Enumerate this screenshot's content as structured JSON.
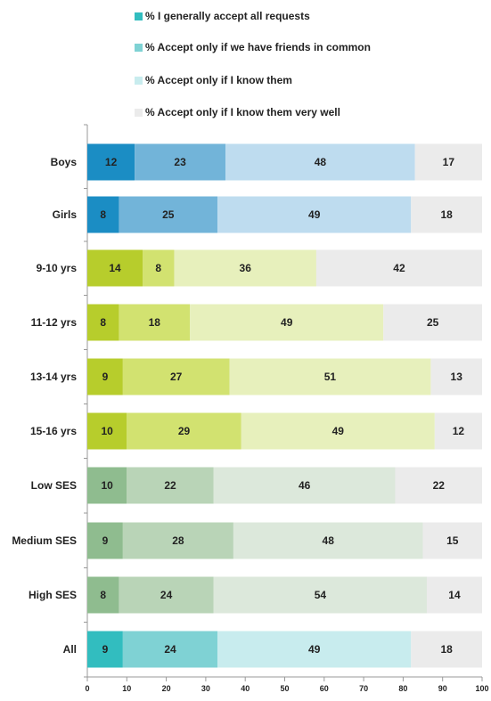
{
  "chart_data": {
    "type": "bar",
    "orientation": "horizontal",
    "stacked": true,
    "title": "",
    "xlabel": "",
    "ylabel": "",
    "xlim": [
      0,
      100
    ],
    "xticks": [
      "0",
      "10",
      "20",
      "30",
      "40",
      "50",
      "60",
      "70",
      "80",
      "90",
      "100"
    ],
    "grid": false,
    "legend_position": "top",
    "categories": [
      "Boys",
      "Girls",
      "9-10 yrs",
      "11-12 yrs",
      "13-14 yrs",
      "15-16 yrs",
      "Low SES",
      "Medium SES",
      "High SES",
      "All"
    ],
    "series": [
      {
        "name": "% I generally accept all requests",
        "values": [
          12,
          8,
          14,
          8,
          9,
          10,
          10,
          9,
          8,
          9
        ]
      },
      {
        "name": "% Accept only if we have friends in common",
        "values": [
          23,
          25,
          8,
          18,
          27,
          29,
          22,
          28,
          24,
          24
        ]
      },
      {
        "name": "% Accept only if I know them",
        "values": [
          48,
          49,
          36,
          49,
          51,
          49,
          46,
          48,
          54,
          49
        ]
      },
      {
        "name": "% Accept only if I know them very well",
        "values": [
          17,
          18,
          42,
          25,
          13,
          12,
          22,
          15,
          14,
          18
        ]
      }
    ],
    "colors": {
      "legend": [
        "#32bdbf",
        "#7fd2d4",
        "#c8ecee",
        "#ebebeb"
      ],
      "gender": [
        "#1b8dc4",
        "#72b4d9",
        "#bedcef",
        "#ebebeb"
      ],
      "age": [
        "#b7cd2c",
        "#d2e270",
        "#e7f0bc",
        "#ebebeb"
      ],
      "ses": [
        "#8fbc8f",
        "#b9d4b7",
        "#dce8db",
        "#ebebeb"
      ],
      "all": [
        "#32bdbf",
        "#7fd2d4",
        "#c8ecee",
        "#ebebeb"
      ]
    },
    "row_groups": [
      "gender",
      "gender",
      "age",
      "age",
      "age",
      "age",
      "ses",
      "ses",
      "ses",
      "all"
    ]
  }
}
